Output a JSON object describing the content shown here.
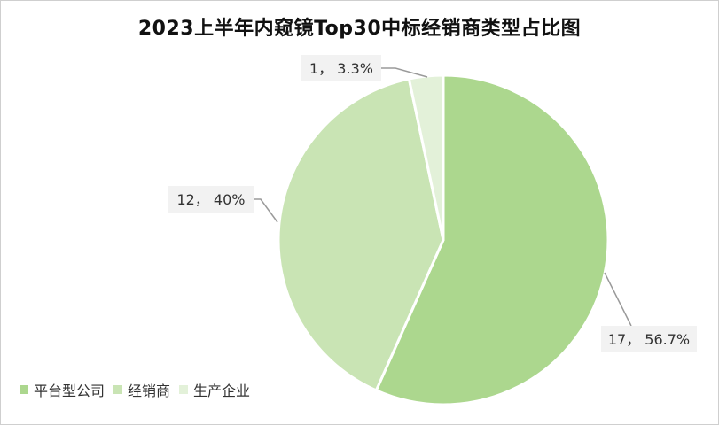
{
  "chart_data": {
    "type": "pie",
    "title": "2023上半年内窥镜Top30中标经销商类型占比图",
    "slices": [
      {
        "name": "平台型公司",
        "value": 17,
        "percent": "56.7%",
        "label": "17， 56.7%",
        "color": "#acd78e"
      },
      {
        "name": "经销商",
        "value": 12,
        "percent": "40%",
        "label": "12， 40%",
        "color": "#c9e4b4"
      },
      {
        "name": "生产企业",
        "value": 1,
        "percent": "3.3%",
        "label": "1， 3.3%",
        "color": "#e3f1d9"
      }
    ],
    "legend_position": "bottom-left"
  }
}
